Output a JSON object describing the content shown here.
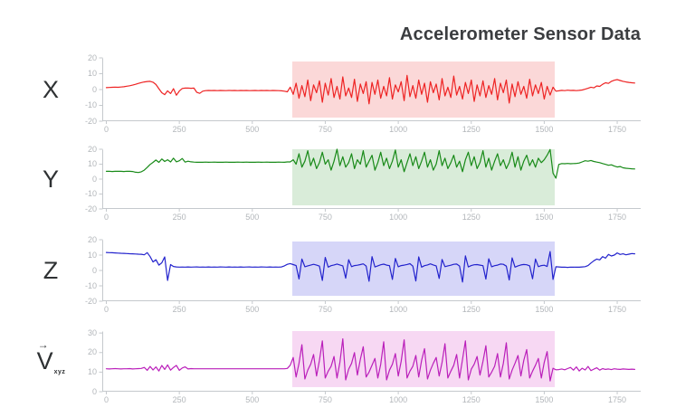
{
  "title": "Accelerometer Sensor Data",
  "chart_data": {
    "type": "line",
    "title": "Accelerometer Sensor Data",
    "grid": false,
    "legend": "none",
    "xlim": [
      0,
      1810
    ],
    "xticks": [
      0,
      250,
      500,
      750,
      1000,
      1250,
      1500,
      1750
    ],
    "highlight_region": {
      "from": 638,
      "to": 1536
    },
    "subplots": [
      {
        "label": "X",
        "label_arrow": "",
        "label_sub": "",
        "color": "#ee2323",
        "band_color": "#fbd8d8",
        "ylim": [
          -20,
          20
        ],
        "yticks": [
          20,
          10,
          0,
          -10,
          -20
        ],
        "series": {
          "x0": 0,
          "step": 10,
          "y": [
            1.2,
            1.3,
            1.4,
            1.5,
            1.4,
            1.6,
            1.8,
            2.1,
            2.4,
            2.8,
            3.3,
            3.9,
            4.4,
            4.8,
            5.1,
            5.2,
            4.6,
            3.2,
            0.5,
            -2.0,
            -3.2,
            -0.8,
            -2.5,
            0.6,
            -3.6,
            -0.9,
            0.7,
            0.9,
            1.0,
            0.8,
            0.9,
            -1.8,
            -2.4,
            -1.0,
            -0.7,
            -0.6,
            -0.65,
            -0.6,
            -0.7,
            -0.6,
            -0.65,
            -0.7,
            -0.6,
            -0.65,
            -0.6,
            -0.7,
            -0.6,
            -0.65,
            -0.6,
            -0.7,
            -0.65,
            -0.6,
            -0.7,
            -0.6,
            -0.65,
            -0.6,
            -0.7,
            -0.6,
            -0.65,
            -0.7,
            -0.8,
            -1.0,
            -1.4,
            1.5,
            -3,
            4,
            -5.5,
            2.5,
            -4.5,
            6,
            -7,
            3,
            -2,
            5.5,
            -8,
            4,
            -3.5,
            7,
            -5,
            2,
            -6,
            8,
            -4,
            1,
            -5,
            6.5,
            -7.5,
            3.5,
            -2.5,
            5,
            -9,
            4.5,
            -3,
            6,
            -5.5,
            2,
            -4,
            7.5,
            -6,
            3,
            -1.5,
            5,
            -7,
            9,
            -4.5,
            2.5,
            -5.5,
            6,
            -3,
            4,
            -8,
            5,
            -2,
            3.5,
            -6.5,
            7,
            -4,
            1.5,
            -5,
            8.5,
            -3.5,
            2,
            -6,
            4.5,
            -2.5,
            6,
            -7.5,
            3,
            -4,
            5.5,
            -5,
            2.5,
            -3,
            7,
            -6.5,
            4,
            -2,
            6,
            -8.5,
            3.5,
            -4.5,
            5,
            -3,
            2,
            -5.5,
            6.5,
            -4,
            3,
            -2.5,
            4.5,
            -6,
            2,
            -3.5,
            1.5,
            -1,
            -0.8,
            -0.5,
            -0.7,
            -0.4,
            -0.6,
            -0.5,
            -0.7,
            -0.5,
            -0.3,
            0.2,
            0.8,
            1.5,
            1.1,
            2.3,
            2.0,
            3.3,
            4.3,
            3.9,
            5.2,
            5.9,
            6.3,
            5.7,
            5.2,
            4.8,
            4.5,
            4.3,
            4.1
          ]
        }
      },
      {
        "label": "Y",
        "label_arrow": "",
        "label_sub": "",
        "color": "#188a18",
        "band_color": "#d9ecd9",
        "ylim": [
          -20,
          20
        ],
        "yticks": [
          20,
          10,
          0,
          -10,
          -20
        ],
        "series": {
          "x0": 0,
          "step": 10,
          "y": [
            5.2,
            5.3,
            5.1,
            5.2,
            5.3,
            5.2,
            5.1,
            5.3,
            5.2,
            5.1,
            4.6,
            4.4,
            4.9,
            6.0,
            7.8,
            9.8,
            11.2,
            12.8,
            11.2,
            13.5,
            11.8,
            13.0,
            11.5,
            14.0,
            11.6,
            12.3,
            13.8,
            11.4,
            12.0,
            11.6,
            11.4,
            11.3,
            11.35,
            11.3,
            11.4,
            11.3,
            11.35,
            11.4,
            11.3,
            11.35,
            11.3,
            11.4,
            11.3,
            11.35,
            11.3,
            11.4,
            11.35,
            11.3,
            11.4,
            11.3,
            11.35,
            11.3,
            11.4,
            11.3,
            11.35,
            11.4,
            11.3,
            11.35,
            11.3,
            11.4,
            11.35,
            11.3,
            11.5,
            11.5,
            13,
            10,
            17,
            8,
            12,
            19,
            9,
            14,
            7,
            11,
            18,
            10,
            13,
            6,
            12,
            20,
            9,
            15,
            8,
            11,
            17,
            7,
            13,
            10,
            19,
            8,
            12,
            16,
            6,
            11,
            18,
            9,
            14,
            7,
            12,
            19.5,
            8,
            13,
            5,
            11,
            17,
            9,
            15,
            7,
            12,
            18,
            8,
            13,
            6,
            10,
            19,
            9,
            14,
            7,
            11,
            16,
            8,
            12,
            5,
            13,
            18,
            9,
            15,
            7,
            11,
            19,
            8,
            14,
            6,
            12,
            17,
            9,
            13,
            7,
            11,
            18,
            8,
            15,
            6,
            12,
            16,
            9,
            13,
            8,
            14,
            11,
            13,
            16,
            19.8,
            4,
            0.6,
            9.8,
            10.4,
            10.3,
            10.5,
            10.3,
            10.4,
            10.5,
            10.8,
            11.5,
            12.3,
            12.0,
            12.5,
            11.8,
            11.4,
            11.0,
            10.4,
            9.9,
            9.3,
            9.6,
            8.7,
            8.1,
            8.4,
            7.6,
            7.3,
            7.1,
            6.9,
            6.8
          ]
        }
      },
      {
        "label": "Z",
        "label_arrow": "",
        "label_sub": "",
        "color": "#2323cd",
        "band_color": "#d6d6f8",
        "ylim": [
          -20,
          20
        ],
        "yticks": [
          20,
          10,
          0,
          -10,
          -20
        ],
        "series": {
          "x0": 0,
          "step": 10,
          "y": [
            11.7,
            11.6,
            11.5,
            11.4,
            11.3,
            11.2,
            11.1,
            11.0,
            10.9,
            10.8,
            10.7,
            10.6,
            10.5,
            10.2,
            11.6,
            9.0,
            5.5,
            7.0,
            3.5,
            5.0,
            8.8,
            -6.5,
            3.8,
            2.6,
            2.3,
            2.2,
            2.25,
            2.2,
            2.3,
            2.2,
            2.25,
            2.3,
            2.2,
            2.25,
            2.2,
            2.3,
            2.2,
            2.25,
            2.2,
            2.3,
            2.25,
            2.2,
            2.3,
            2.2,
            2.25,
            2.2,
            2.3,
            2.2,
            2.25,
            2.3,
            2.2,
            2.25,
            2.2,
            2.3,
            2.25,
            2.2,
            2.3,
            2.2,
            2.25,
            2.2,
            2.3,
            3.0,
            4.0,
            4.5,
            3.8,
            3.2,
            -5.5,
            7.5,
            2.4,
            3.0,
            3.5,
            4.0,
            3.5,
            2.8,
            -6.5,
            8.5,
            2.2,
            3.1,
            3.6,
            4.2,
            3.6,
            3.0,
            -5.0,
            7.0,
            2.5,
            3.2,
            3.4,
            3.8,
            4.3,
            2.9,
            -7.0,
            9.0,
            2.3,
            3.0,
            3.7,
            4.1,
            3.5,
            3.1,
            -5.8,
            7.8,
            2.4,
            3.2,
            3.5,
            3.9,
            4.4,
            2.8,
            -6.8,
            8.8,
            2.2,
            3.1,
            3.6,
            4.3,
            3.6,
            3.0,
            -5.2,
            7.2,
            2.5,
            3.0,
            3.4,
            4.0,
            4.2,
            2.9,
            -7.5,
            9.5,
            2.3,
            3.2,
            3.7,
            3.8,
            3.5,
            3.1,
            -5.6,
            7.6,
            2.4,
            3.1,
            3.5,
            4.2,
            4.0,
            2.8,
            -6.2,
            8.2,
            2.2,
            3.0,
            3.6,
            3.9,
            3.7,
            3.0,
            -5.4,
            7.4,
            2.5,
            3.2,
            3.4,
            2.6,
            12.3,
            -5.8,
            2.4,
            2.3,
            2.1,
            2.2,
            2.0,
            2.15,
            2.1,
            2.2,
            2.1,
            2.3,
            2.5,
            3.2,
            4.8,
            6.3,
            7.4,
            6.9,
            9.0,
            8.0,
            10.4,
            9.4,
            10.0,
            11.4,
            10.4,
            10.8,
            10.2,
            10.6,
            11.0,
            10.8
          ]
        }
      },
      {
        "label": "V",
        "label_arrow": "→",
        "label_sub": "xyz",
        "color": "#ba1fba",
        "band_color": "#f7d8f3",
        "ylim": [
          0,
          31
        ],
        "yticks": [
          30,
          20,
          10,
          0
        ],
        "series": {
          "x0": 0,
          "step": 10,
          "y": [
            11.7,
            11.6,
            11.7,
            11.8,
            11.7,
            11.6,
            11.7,
            11.7,
            11.8,
            11.6,
            11.7,
            11.8,
            11.9,
            12.4,
            10.9,
            12.9,
            11.1,
            12.7,
            10.6,
            13.4,
            11.4,
            13.7,
            11.0,
            12.4,
            13.4,
            10.9,
            12.1,
            12.7,
            11.6,
            11.8,
            11.7,
            11.7,
            11.7,
            11.7,
            11.7,
            11.7,
            11.7,
            11.7,
            11.7,
            11.7,
            11.7,
            11.7,
            11.7,
            11.7,
            11.7,
            11.7,
            11.7,
            11.7,
            11.7,
            11.7,
            11.7,
            11.7,
            11.7,
            11.7,
            11.7,
            11.7,
            11.7,
            11.7,
            11.7,
            11.7,
            11.7,
            11.7,
            11.9,
            13.5,
            17.5,
            7.5,
            14.5,
            24,
            6.5,
            11,
            14,
            19,
            8,
            16,
            26,
            7,
            10.5,
            13,
            18,
            7,
            15,
            27,
            6,
            11.5,
            14.5,
            20,
            8.5,
            16.5,
            23,
            7.5,
            10,
            13.5,
            17,
            7,
            14,
            25.5,
            6,
            11,
            14,
            19.5,
            8,
            15.5,
            26.5,
            7,
            10.5,
            13,
            18.5,
            7.5,
            16,
            22,
            6.5,
            11,
            14.5,
            17.5,
            8,
            15,
            24.5,
            7,
            10.5,
            13.5,
            19,
            7,
            16.5,
            26,
            6,
            11.5,
            14,
            18,
            8.5,
            15.5,
            23.5,
            7.5,
            10,
            13,
            19.5,
            7.5,
            14.5,
            25,
            6.5,
            11,
            14.5,
            18.5,
            8,
            16,
            21.5,
            7,
            10.5,
            13.5,
            17,
            7,
            15,
            20.5,
            5.5,
            12,
            11.2,
            11.3,
            11.6,
            11.2,
            11.8,
            12.4,
            11.0,
            12.7,
            10.6,
            12.0,
            11.1,
            12.9,
            10.8,
            11.5,
            12.2,
            11.0,
            11.8,
            11.4,
            11.6,
            11.3,
            11.7,
            11.5,
            11.4,
            11.6,
            11.5,
            11.4,
            11.5,
            11.4
          ]
        }
      }
    ]
  },
  "style": {
    "axis_color": "#c5c9cd",
    "tick_label_color": "#b2b6ba",
    "title_color": "#3b3d40"
  }
}
